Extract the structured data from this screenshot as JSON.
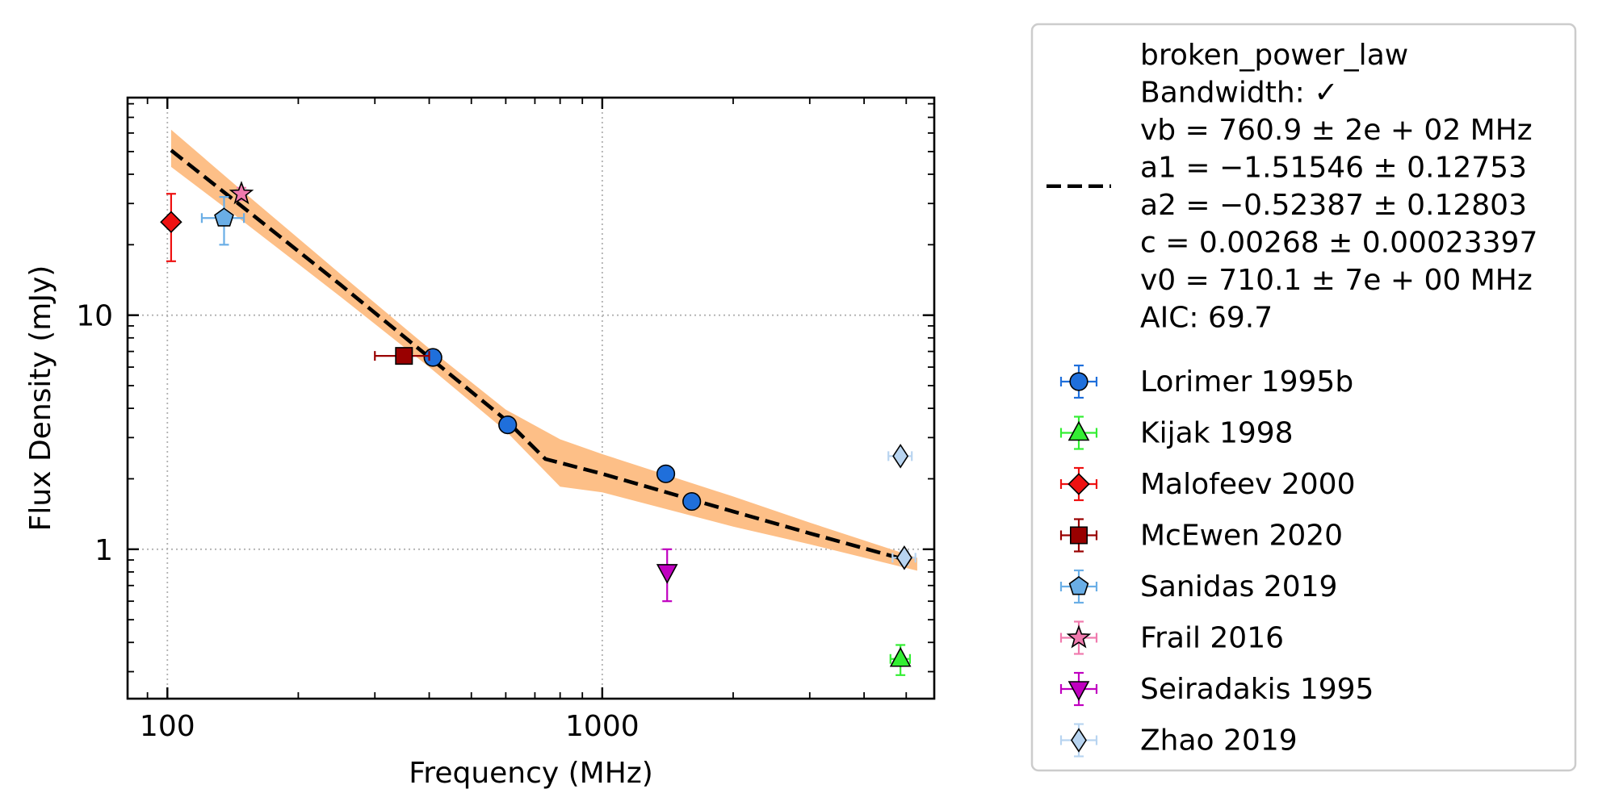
{
  "chart_data": {
    "type": "scatter",
    "title": "",
    "xlabel": "Frequency (MHz)",
    "ylabel": "Flux Density (mJy)",
    "xscale": "log",
    "yscale": "log",
    "xlim": [
      81,
      5800
    ],
    "ylim": [
      0.23,
      85
    ],
    "grid": true,
    "legend_position": "outside-right",
    "xticks": [
      {
        "value": 100,
        "label": "100"
      },
      {
        "value": 1000,
        "label": "1000"
      }
    ],
    "yticks": [
      {
        "value": 1,
        "label": "1"
      },
      {
        "value": 10,
        "label": "10"
      }
    ],
    "fit": {
      "name": "broken_power_law",
      "color": "#000000",
      "band_color": "#fdbf87",
      "legend_lines": [
        "broken_power_law",
        "Bandwidth: ✓",
        "vb = 760.9 ± 2e + 02 MHz",
        "a1 = −1.51546 ± 0.12753",
        "a2 = −0.52387 ± 0.12803",
        "c = 0.00268 ± 0.00023397",
        "v0 = 710.1 ± 7e + 00 MHz",
        "AIC: 69.7"
      ],
      "line": [
        [
          102,
          50.6
        ],
        [
          150,
          28.7
        ],
        [
          250,
          13.5
        ],
        [
          400,
          6.61
        ],
        [
          600,
          3.57
        ],
        [
          740,
          2.43
        ],
        [
          1000,
          2.1
        ],
        [
          2000,
          1.45
        ],
        [
          3000,
          1.17
        ],
        [
          5000,
          0.9
        ]
      ],
      "band_upper": [
        [
          102,
          62
        ],
        [
          150,
          33.5
        ],
        [
          250,
          15
        ],
        [
          400,
          7.2
        ],
        [
          600,
          3.95
        ],
        [
          800,
          2.95
        ],
        [
          1000,
          2.55
        ],
        [
          2000,
          1.68
        ],
        [
          3000,
          1.3
        ],
        [
          5300,
          0.92
        ]
      ],
      "band_lower": [
        [
          102,
          43
        ],
        [
          150,
          25
        ],
        [
          250,
          12
        ],
        [
          400,
          6.0
        ],
        [
          600,
          3.2
        ],
        [
          800,
          1.85
        ],
        [
          1000,
          1.75
        ],
        [
          2000,
          1.25
        ],
        [
          3000,
          1.05
        ],
        [
          5300,
          0.81
        ]
      ]
    },
    "series": [
      {
        "name": "Lorimer 1995b",
        "marker": "circle",
        "color": "#1f6fdb",
        "points": [
          {
            "x": 408,
            "y": 6.6,
            "yerr": 0.3
          },
          {
            "x": 606,
            "y": 3.4,
            "yerr": 0.15
          },
          {
            "x": 1400,
            "y": 2.1,
            "yerr": 0.12
          },
          {
            "x": 1606,
            "y": 1.6,
            "yerr": 0.08
          }
        ]
      },
      {
        "name": "Kijak 1998",
        "marker": "triangle-up",
        "color": "#33ee33",
        "points": [
          {
            "x": 4850,
            "y": 0.34,
            "yerr": 0.05,
            "xerr": 250
          }
        ]
      },
      {
        "name": "Malofeev 2000",
        "marker": "diamond",
        "color": "#ee1111",
        "points": [
          {
            "x": 102,
            "y": 25,
            "yerr": 8
          }
        ]
      },
      {
        "name": "McEwen 2020",
        "marker": "square",
        "color": "#990000",
        "points": [
          {
            "x": 350,
            "y": 6.7,
            "yerr": 0.4,
            "xerr": 50
          }
        ]
      },
      {
        "name": "Sanidas 2019",
        "marker": "pentagon",
        "color": "#6aaee6",
        "points": [
          {
            "x": 135,
            "y": 26,
            "yerr": 6,
            "xerr": 15
          }
        ]
      },
      {
        "name": "Frail 2016",
        "marker": "star",
        "color": "#f07aae",
        "points": [
          {
            "x": 148,
            "y": 33,
            "yerr": 2
          }
        ]
      },
      {
        "name": "Seiradakis 1995",
        "marker": "triangle-down",
        "color": "#c000c0",
        "points": [
          {
            "x": 1410,
            "y": 0.8,
            "yerr": 0.2
          }
        ]
      },
      {
        "name": "Zhao 2019",
        "marker": "thin-diamond",
        "color": "#b8d4f0",
        "points": [
          {
            "x": 4850,
            "y": 2.5,
            "yerr": 0.1,
            "xerr": 300
          },
          {
            "x": 4950,
            "y": 0.92,
            "yerr": 0.06,
            "xerr": 300
          }
        ]
      }
    ]
  }
}
